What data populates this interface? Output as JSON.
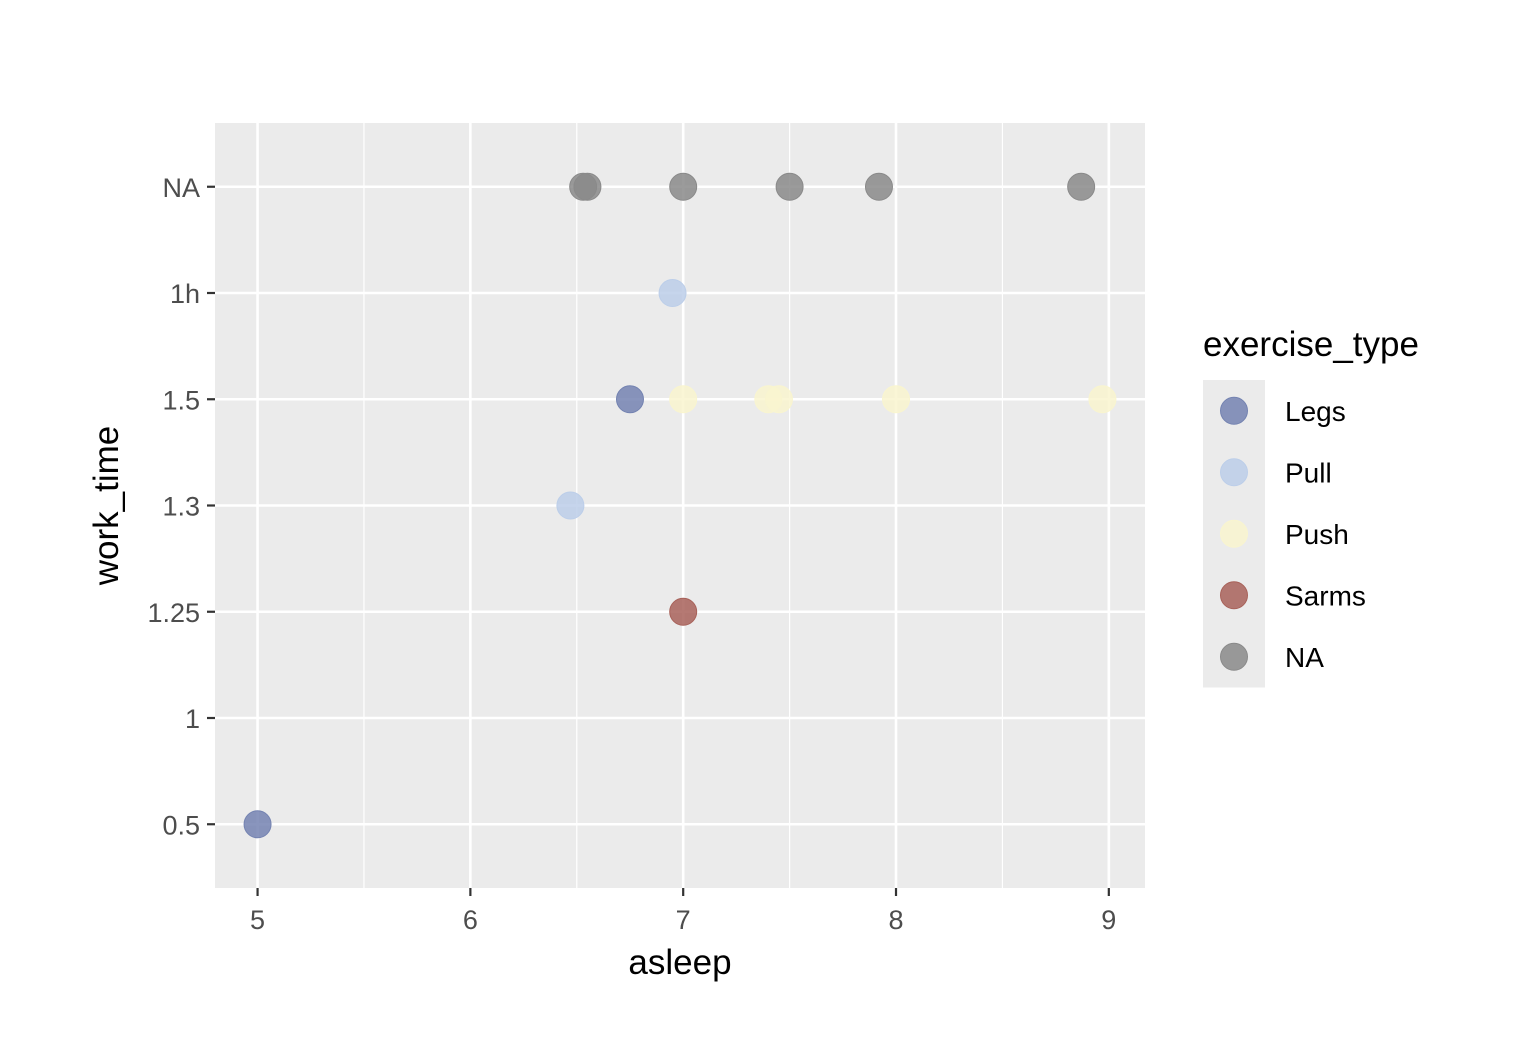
{
  "chart_data": {
    "type": "scatter",
    "title": "",
    "xlabel": "asleep",
    "ylabel": "work_time",
    "xlim": [
      4.8,
      9.17
    ],
    "x_ticks": [
      5,
      6,
      7,
      8,
      9
    ],
    "y_categories": [
      "0.5",
      "1",
      "1.25",
      "1.3",
      "1.5",
      "1h",
      "NA"
    ],
    "grid": true,
    "legend": {
      "title": "exercise_type",
      "position": "right",
      "entries": [
        {
          "label": "Legs",
          "color": "#7483b1"
        },
        {
          "label": "Pull",
          "color": "#bccee9"
        },
        {
          "label": "Push",
          "color": "#f9f5cf"
        },
        {
          "label": "Sarms",
          "color": "#a8625a"
        },
        {
          "label": "NA",
          "color": "#8a8a8a"
        }
      ]
    },
    "series": [
      {
        "name": "Legs",
        "points": [
          {
            "x": 5.0,
            "y": "0.5"
          },
          {
            "x": 6.75,
            "y": "1.5"
          }
        ]
      },
      {
        "name": "Pull",
        "points": [
          {
            "x": 6.47,
            "y": "1.3"
          },
          {
            "x": 6.95,
            "y": "1h"
          }
        ]
      },
      {
        "name": "Push",
        "points": [
          {
            "x": 7.0,
            "y": "1.5"
          },
          {
            "x": 7.4,
            "y": "1.5"
          },
          {
            "x": 7.45,
            "y": "1.5"
          },
          {
            "x": 8.0,
            "y": "1.5"
          },
          {
            "x": 8.97,
            "y": "1.5"
          }
        ]
      },
      {
        "name": "Sarms",
        "points": [
          {
            "x": 7.0,
            "y": "1.25"
          }
        ]
      },
      {
        "name": "NA",
        "points": [
          {
            "x": 6.53,
            "y": "NA"
          },
          {
            "x": 6.55,
            "y": "NA"
          },
          {
            "x": 7.0,
            "y": "NA"
          },
          {
            "x": 7.5,
            "y": "NA"
          },
          {
            "x": 7.92,
            "y": "NA"
          },
          {
            "x": 8.87,
            "y": "NA"
          }
        ]
      }
    ]
  }
}
